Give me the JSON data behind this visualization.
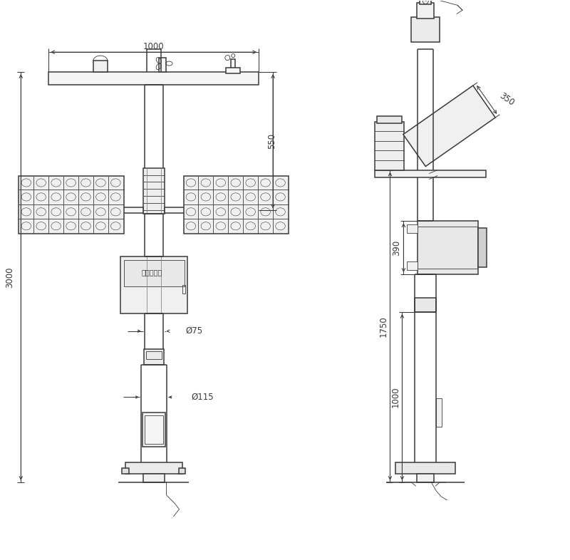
{
  "bg_color": "#ffffff",
  "line_color": "#3a3a3a",
  "dim_color": "#3a3a3a",
  "figsize": [
    8.0,
    7.86
  ],
  "dpi": 100,
  "annotations": {
    "dim_1000_top": "1000",
    "dim_550": "550",
    "dim_3000": "3000",
    "dim_phi75": "Ø75",
    "dim_phi115": "Ø115",
    "dim_350": "350",
    "dim_390": "390",
    "dim_1750": "1750",
    "dim_1000_right": "1000",
    "label_station": "环境监测站"
  }
}
